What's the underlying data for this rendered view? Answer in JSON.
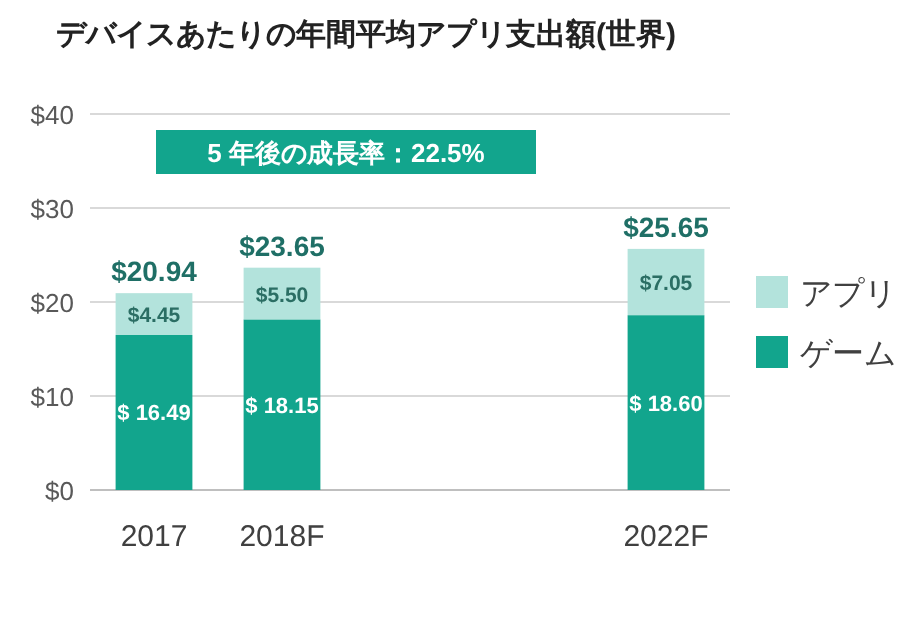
{
  "chart_data": {
    "type": "bar",
    "title": "デバイスあたりの年間平均アプリ支出額(世界)",
    "stacked": true,
    "categories": [
      "2017",
      "2018F",
      null,
      null,
      "2022F"
    ],
    "series": [
      {
        "name": "ゲーム",
        "color": "#12a58d",
        "values": [
          16.49,
          18.15,
          null,
          null,
          18.6
        ],
        "value_labels": [
          "$ 16.49",
          "$ 18.15",
          null,
          null,
          "$ 18.60"
        ]
      },
      {
        "name": "アプリ",
        "color": "#b3e3dc",
        "values": [
          4.45,
          5.5,
          null,
          null,
          7.05
        ],
        "value_labels": [
          "$4.45",
          "$5.50",
          null,
          null,
          "$7.05"
        ]
      }
    ],
    "totals": [
      "$20.94",
      "$23.65",
      null,
      null,
      "$25.65"
    ],
    "ylim": [
      0,
      40
    ],
    "yticks": [
      {
        "value": 0,
        "label": "$0"
      },
      {
        "value": 10,
        "label": "$10"
      },
      {
        "value": 20,
        "label": "$20"
      },
      {
        "value": 30,
        "label": "$30"
      },
      {
        "value": 40,
        "label": "$40"
      }
    ],
    "grid": "y",
    "legend": "right",
    "annotations": [
      "5 年後の成長率：22.5%"
    ]
  }
}
